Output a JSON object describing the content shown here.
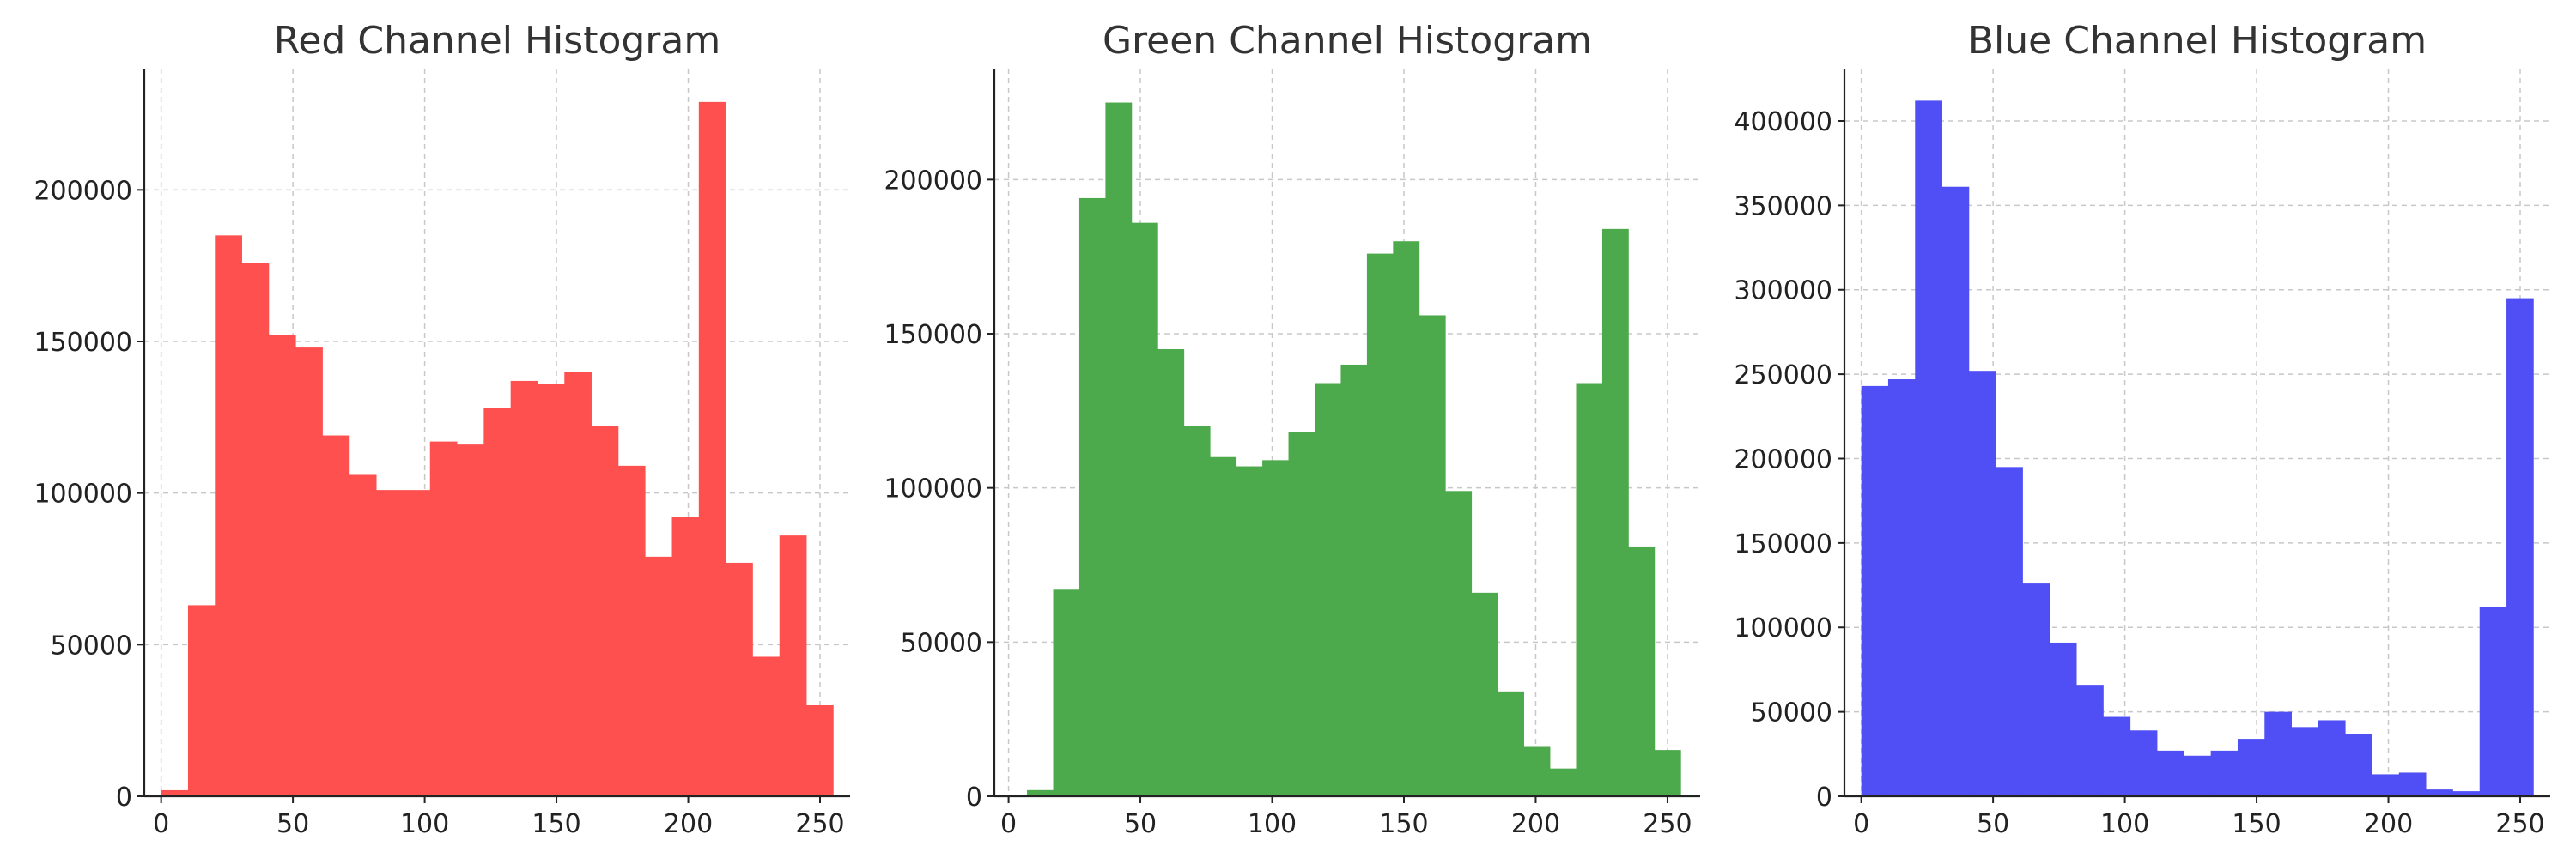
{
  "chart_data": [
    {
      "type": "bar",
      "title": "Red Channel Histogram",
      "xlabel": "",
      "ylabel": "",
      "bin_start": 0,
      "bin_width": 10.2,
      "values": [
        2000,
        63000,
        185000,
        176000,
        152000,
        148000,
        119000,
        106000,
        101000,
        101000,
        117000,
        116000,
        128000,
        137000,
        136000,
        140000,
        122000,
        109000,
        79000,
        92000,
        229000,
        77000,
        46000,
        86000,
        30000
      ],
      "color": "#ff5050",
      "xlim": [
        -6.4,
        261.4
      ],
      "ylim": [
        0,
        240000
      ],
      "xticks": [
        0,
        50,
        100,
        150,
        200,
        250
      ],
      "yticks": [
        0,
        50000,
        100000,
        150000,
        200000
      ],
      "grid": true
    },
    {
      "type": "bar",
      "title": "Green Channel Histogram",
      "xlabel": "",
      "ylabel": "",
      "bin_start": 7,
      "bin_width": 9.92,
      "values": [
        2000,
        67000,
        194000,
        225000,
        186000,
        145000,
        120000,
        110000,
        107000,
        109000,
        118000,
        134000,
        140000,
        176000,
        180000,
        156000,
        99000,
        66000,
        34000,
        16000,
        9000,
        134000,
        184000,
        81000,
        15000
      ],
      "color": "#4caa4c",
      "xlim": [
        -5.4,
        262.4
      ],
      "ylim": [
        0,
        236000
      ],
      "xticks": [
        0,
        50,
        100,
        150,
        200,
        250
      ],
      "yticks": [
        0,
        50000,
        100000,
        150000,
        200000
      ],
      "grid": true
    },
    {
      "type": "bar",
      "title": "Blue Channel Histogram",
      "xlabel": "",
      "ylabel": "",
      "bin_start": 0,
      "bin_width": 10.2,
      "values": [
        243000,
        247000,
        412000,
        361000,
        252000,
        195000,
        126000,
        91000,
        66000,
        47000,
        39000,
        27000,
        24000,
        27000,
        34000,
        50000,
        41000,
        45000,
        37000,
        13000,
        14000,
        4000,
        3000,
        112000,
        295000
      ],
      "color": "#4f4ff5",
      "xlim": [
        -6.4,
        261.4
      ],
      "ylim": [
        0,
        431000
      ],
      "xticks": [
        0,
        50,
        100,
        150,
        200,
        250
      ],
      "yticks": [
        0,
        50000,
        100000,
        150000,
        200000,
        250000,
        300000,
        350000,
        400000
      ],
      "grid": true
    }
  ]
}
